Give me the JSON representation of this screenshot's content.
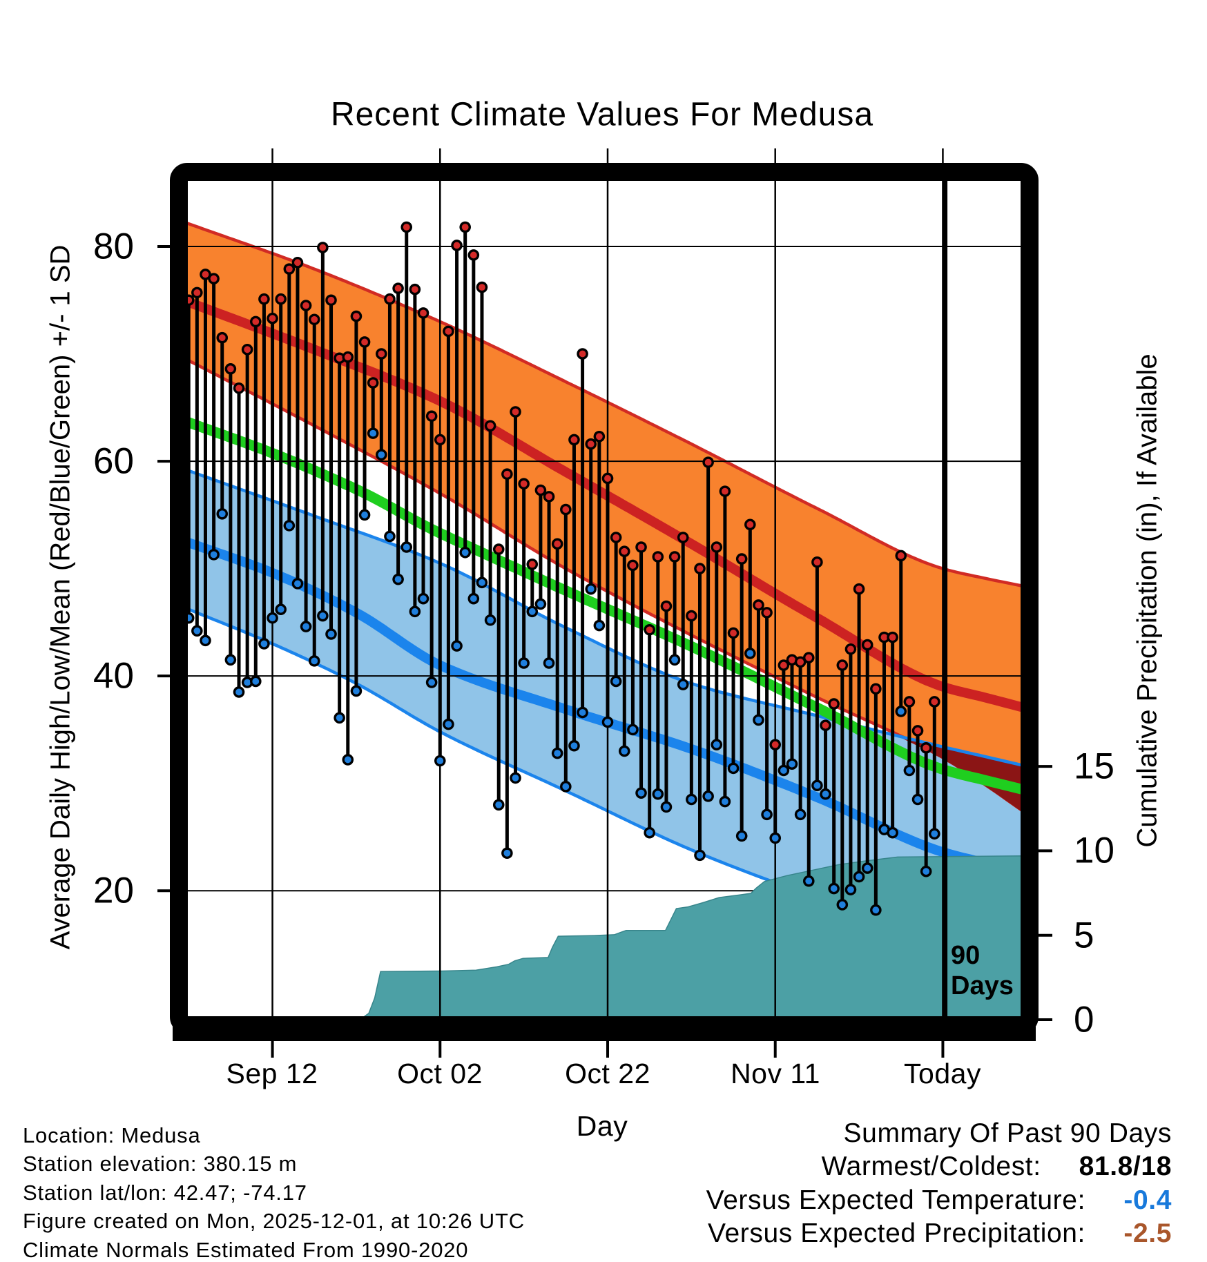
{
  "title": "Recent Climate Values For Medusa",
  "axes": {
    "y_left": {
      "label": "Average Daily High/Low/Mean (Red/Blue/Green) +/- 1 SD",
      "ticks": [
        {
          "value": 80,
          "label": "80"
        },
        {
          "value": 60,
          "label": "60"
        },
        {
          "value": 40,
          "label": "40"
        },
        {
          "value": 20,
          "label": "20"
        }
      ]
    },
    "y_right": {
      "label": "Cumulative Precipitation (in), If Available",
      "ticks": [
        {
          "value": 15,
          "label": "15"
        },
        {
          "value": 10,
          "label": "10"
        },
        {
          "value": 5,
          "label": "5"
        },
        {
          "value": 0,
          "label": "0"
        }
      ]
    },
    "x": {
      "label": "Day",
      "ticks": [
        {
          "day": 10,
          "label": "Sep 12"
        },
        {
          "day": 30,
          "label": "Oct 02"
        },
        {
          "day": 50,
          "label": "Oct 22"
        },
        {
          "day": 70,
          "label": "Nov 11"
        },
        {
          "day": 90,
          "label": "Today"
        }
      ]
    }
  },
  "marker_90days": {
    "day": 90.3,
    "line1": "90",
    "line2": "Days"
  },
  "footer": [
    "Location: Medusa",
    "Station elevation: 380.15 m",
    "Station lat/lon: 42.47; -74.17",
    "Figure created on Mon, 2025-12-01, at 10:26 UTC",
    "Climate Normals Estimated From 1990-2020"
  ],
  "summary": {
    "heading": "Summary Of Past 90 Days",
    "rows": [
      {
        "label": "Warmest/Coldest:",
        "value": "81.8/18",
        "color": "#000000"
      },
      {
        "label": "Versus Expected Temperature:",
        "value": "-0.4",
        "color": "#1879DB"
      },
      {
        "label": "Versus Expected Precipitation:",
        "value": "-2.5",
        "color": "#A9562B"
      }
    ]
  },
  "colors": {
    "high_band_fill": "#F8822E",
    "high_edge": "#D12B24",
    "high_mean_line": "#CC2222",
    "low_band_fill": "#90C4E8",
    "low_edge": "#1B84EC",
    "low_mean_line": "#1B84EC",
    "mean_line": "#1FCE1F",
    "band_overlap": "#8B1515",
    "precip_fill": "#4CA0A5",
    "stem": "#000000",
    "high_dot": "#D42A28",
    "low_dot": "#1F7FDD",
    "grid": "#000000",
    "frame": "#000000"
  },
  "chart_data": {
    "type": "climate-stem",
    "title": "Recent Climate Values For Medusa",
    "xlabel": "Day",
    "ylabel_left": "Average Daily High/Low/Mean (Red/Blue/Green) +/- 1 SD",
    "ylabel_right": "Cumulative Precipitation (in), If Available",
    "x_day_range": [
      -0.3,
      99.4
    ],
    "ylim_left_at_plot_edges": [
      6.3,
      86.2
    ],
    "ylim_right": [
      0,
      15
    ],
    "grid": true,
    "days_span": 90,
    "daily_high_f": [
      75.0,
      75.7,
      77.4,
      77.0,
      71.5,
      68.6,
      66.8,
      70.4,
      73.0,
      75.1,
      73.3,
      75.1,
      77.9,
      78.5,
      74.5,
      73.2,
      79.9,
      75.0,
      69.6,
      69.7,
      73.5,
      71.1,
      67.3,
      70.0,
      75.1,
      76.1,
      81.8,
      76.0,
      73.8,
      64.2,
      62.0,
      72.1,
      80.1,
      81.8,
      79.2,
      76.2,
      63.3,
      51.8,
      58.8,
      64.6,
      57.9,
      50.4,
      57.3,
      56.7,
      52.3,
      55.5,
      62.0,
      70.0,
      61.6,
      62.3,
      58.4,
      52.9,
      51.6,
      50.3,
      52.0,
      44.3,
      51.1,
      46.5,
      51.1,
      52.9,
      45.6,
      50.0,
      59.9,
      52.0,
      57.2,
      44.0,
      50.9,
      54.1,
      46.6,
      45.9,
      33.6,
      41.0,
      41.5,
      41.3,
      41.7,
      50.6,
      35.4,
      37.4,
      41.0,
      42.5,
      48.1,
      42.9,
      38.8,
      43.6,
      43.6,
      51.2,
      37.6,
      34.9,
      33.3,
      37.6
    ],
    "daily_low_f": [
      45.4,
      44.2,
      43.3,
      51.3,
      55.1,
      41.5,
      38.5,
      39.4,
      39.5,
      43.0,
      45.4,
      46.2,
      54.0,
      48.6,
      44.6,
      41.4,
      45.6,
      43.9,
      36.1,
      32.2,
      38.6,
      55.0,
      62.6,
      60.6,
      53.0,
      49.0,
      52.0,
      46.0,
      47.2,
      39.4,
      32.1,
      35.5,
      42.8,
      51.5,
      47.2,
      48.7,
      45.2,
      28.0,
      23.5,
      30.5,
      41.2,
      46.0,
      46.7,
      41.2,
      32.8,
      29.7,
      33.5,
      36.6,
      48.1,
      44.7,
      35.7,
      39.5,
      33.0,
      35.0,
      29.1,
      25.4,
      29.0,
      27.8,
      41.5,
      39.2,
      28.5,
      23.3,
      28.8,
      33.6,
      28.3,
      31.4,
      25.1,
      42.1,
      35.9,
      27.1,
      24.9,
      31.2,
      31.8,
      27.1,
      20.9,
      29.8,
      29.0,
      20.2,
      18.7,
      20.1,
      21.3,
      22.1,
      18.2,
      25.7,
      25.4,
      36.7,
      31.2,
      28.5,
      21.8,
      25.3
    ],
    "normals": {
      "high_plus_sd": [
        [
          -0.3,
          82.2
        ],
        [
          15,
          77.9
        ],
        [
          30,
          73.0
        ],
        [
          45,
          67.4
        ],
        [
          60,
          61.6
        ],
        [
          75,
          55.6
        ],
        [
          90,
          50.0
        ],
        [
          95,
          49.1
        ],
        [
          99.4,
          48.4
        ]
      ],
      "high_mean": [
        [
          -0.3,
          74.9
        ],
        [
          15,
          70.4
        ],
        [
          30,
          65.6
        ],
        [
          45,
          59.0
        ],
        [
          60,
          52.3
        ],
        [
          75,
          45.4
        ],
        [
          90,
          39.0
        ],
        [
          95,
          38.0
        ],
        [
          99.4,
          37.1
        ]
      ],
      "high_minus_sd": [
        [
          -0.3,
          69.5
        ],
        [
          15,
          63.3
        ],
        [
          30,
          57.0
        ],
        [
          45,
          50.0
        ],
        [
          60,
          43.8
        ],
        [
          75,
          38.0
        ],
        [
          90,
          32.4
        ],
        [
          95,
          29.9
        ],
        [
          99.4,
          27.5
        ]
      ],
      "low_plus_sd": [
        [
          -0.3,
          59.2
        ],
        [
          15,
          54.9
        ],
        [
          30,
          50.5
        ],
        [
          45,
          44.5
        ],
        [
          60,
          39.3
        ],
        [
          75,
          36.3
        ],
        [
          90,
          33.4
        ],
        [
          95,
          32.5
        ],
        [
          99.4,
          31.7
        ]
      ],
      "low_mean": [
        [
          -0.3,
          52.5
        ],
        [
          10,
          49.6
        ],
        [
          20,
          45.9
        ],
        [
          30,
          41.0
        ],
        [
          45,
          36.9
        ],
        [
          60,
          33.2
        ],
        [
          75,
          28.7
        ],
        [
          90,
          23.6
        ],
        [
          95,
          22.6
        ],
        [
          99.4,
          21.8
        ]
      ],
      "low_minus_sd": [
        [
          -0.3,
          46.3
        ],
        [
          10,
          43.0
        ],
        [
          20,
          39.3
        ],
        [
          30,
          34.8
        ],
        [
          45,
          29.3
        ],
        [
          60,
          23.8
        ],
        [
          75,
          19.3
        ],
        [
          90,
          15.0
        ],
        [
          95,
          14.1
        ],
        [
          99.4,
          13.3
        ]
      ]
    },
    "cumulative_precip_in": [
      [
        -0.3,
        0
      ],
      [
        20.9,
        0
      ],
      [
        21.5,
        0.3
      ],
      [
        22.2,
        1.2
      ],
      [
        22.9,
        2.77
      ],
      [
        30.2,
        2.8
      ],
      [
        34.3,
        2.85
      ],
      [
        36.8,
        3.05
      ],
      [
        38.2,
        3.2
      ],
      [
        38.9,
        3.4
      ],
      [
        39.9,
        3.55
      ],
      [
        42.9,
        3.6
      ],
      [
        43.4,
        4.2
      ],
      [
        44.1,
        4.86
      ],
      [
        48.4,
        4.9
      ],
      [
        50.8,
        4.95
      ],
      [
        51.6,
        5.1
      ],
      [
        52.2,
        5.2
      ],
      [
        56.9,
        5.2
      ],
      [
        57.6,
        5.9
      ],
      [
        58.2,
        6.5
      ],
      [
        59.6,
        6.6
      ],
      [
        61.4,
        6.85
      ],
      [
        63.3,
        7.15
      ],
      [
        65.7,
        7.3
      ],
      [
        67.1,
        7.4
      ],
      [
        67.7,
        7.7
      ],
      [
        68.7,
        8.1
      ],
      [
        71.4,
        8.45
      ],
      [
        74.7,
        8.8
      ],
      [
        77.6,
        9.1
      ],
      [
        80.5,
        9.3
      ],
      [
        84.6,
        9.55
      ],
      [
        90.4,
        9.58
      ],
      [
        99.4,
        9.62
      ]
    ]
  }
}
